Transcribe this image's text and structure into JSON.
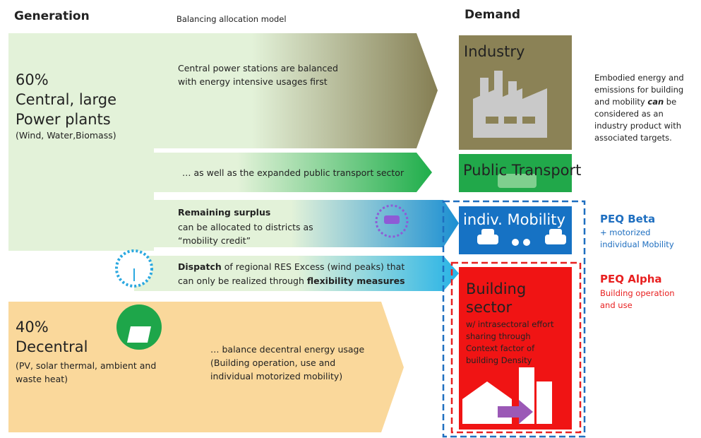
{
  "header": {
    "generation": "Generation",
    "model": "Balancing allocation model",
    "demand": "Demand"
  },
  "sources": [
    {
      "share": "60%",
      "name_lines": [
        "Central, large",
        "Power plants"
      ],
      "detail_lines": [
        "(Wind, Water,Biomass)"
      ]
    },
    {
      "share": "40%",
      "name_lines": [
        "Decentral"
      ],
      "detail_lines": [
        "(PV, solar thermal, ambient and",
        "waste heat)"
      ]
    }
  ],
  "flows": {
    "central": [
      "Central power stations are balanced",
      "with energy intensive usages first"
    ],
    "transport": "… as well as the expanded public transport sector",
    "surplus": {
      "title": "Remaining surplus",
      "lines": [
        "can be allocated to districts as",
        "“mobility credit”"
      ]
    },
    "dispatch": {
      "bold1": "Dispatch",
      "rest1": " of regional RES Excess (wind peaks) that",
      "rest2": "can only be realized through ",
      "bold2": "flexibility measures"
    },
    "decentral": [
      "… balance decentral energy usage",
      "(Building operation, use and",
      "individual motorized mobility)"
    ]
  },
  "demand": {
    "industry": "Industry",
    "public_transport": "Public Transport",
    "mobility": "indiv. Mobility",
    "building": {
      "title_lines": [
        "Building",
        "sector"
      ],
      "detail_lines": [
        "w/ intrasectoral effort",
        "sharing through",
        "Context factor of",
        "building Density"
      ]
    }
  },
  "notes": {
    "embodied": {
      "line1": "Embodied energy and",
      "line2": "emissions for building",
      "line3a": "and mobility ",
      "line3b": "can",
      "line3c": " be",
      "line4": "considered as an",
      "line5": "industry product with",
      "line6": "associated targets."
    },
    "beta": {
      "title": "PEQ Beta",
      "lines": [
        "+ motorized",
        "individual Mobility"
      ]
    },
    "alpha": {
      "title": "PEQ Alpha",
      "lines": [
        "Building operation",
        "and use"
      ]
    }
  }
}
